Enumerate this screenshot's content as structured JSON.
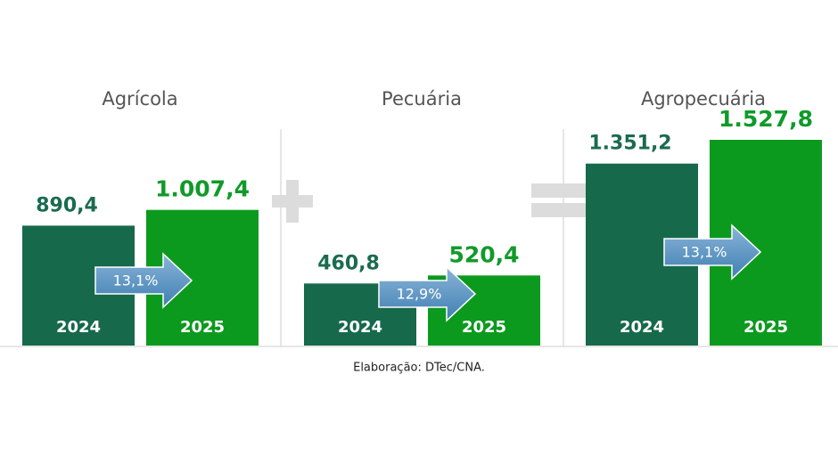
{
  "chart_data": [
    {
      "type": "bar",
      "title": "Agrícola",
      "categories": [
        "2024",
        "2025"
      ],
      "values": [
        890.4,
        1007.4
      ],
      "value_labels": [
        "890,4",
        "1.007,4"
      ],
      "colors": [
        "#17694b",
        "#0c9a1e"
      ],
      "annotation": "13,1%"
    },
    {
      "type": "bar",
      "title": "Pecuária",
      "categories": [
        "2024",
        "2025"
      ],
      "values": [
        460.8,
        520.4
      ],
      "value_labels": [
        "460,8",
        "520,4"
      ],
      "colors": [
        "#17694b",
        "#0c9a1e"
      ],
      "annotation": "12,9%"
    },
    {
      "type": "bar",
      "title": "Agropecuária",
      "categories": [
        "2024",
        "2025"
      ],
      "values": [
        1351.2,
        1527.8
      ],
      "value_labels": [
        "1.351,2",
        "1.527,8"
      ],
      "colors": [
        "#17694b",
        "#0c9a1e"
      ],
      "annotation": "13,1%"
    }
  ],
  "source": "Elaboração: DTec/CNA."
}
